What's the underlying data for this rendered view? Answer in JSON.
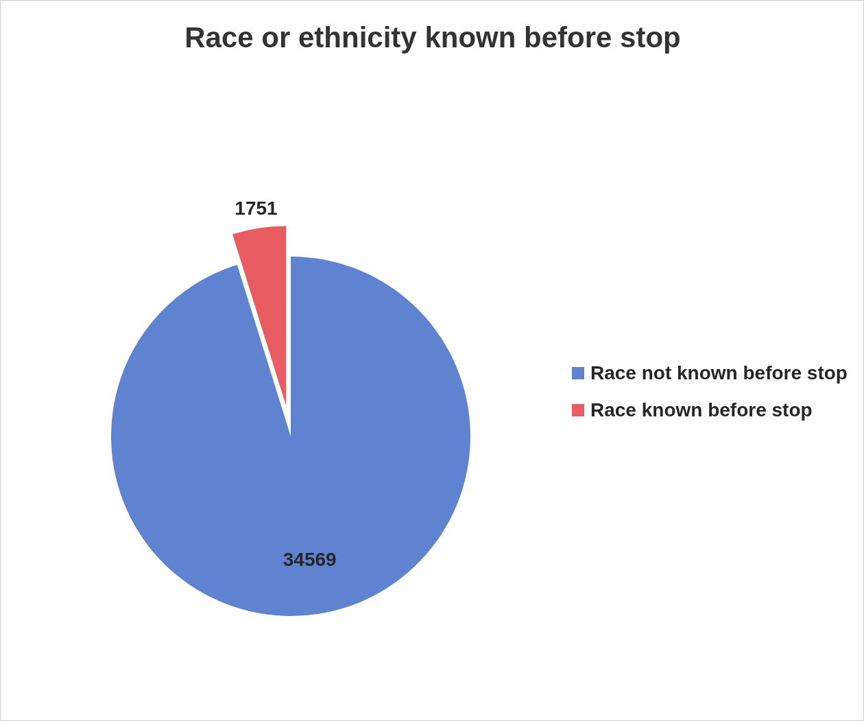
{
  "chart_data": {
    "type": "pie",
    "title": "Race or ethnicity known before stop",
    "categories": [
      "Race not known before stop",
      "Race known before stop"
    ],
    "values": [
      34569,
      1751
    ],
    "colors": [
      "#5f83d0",
      "#e95c62"
    ],
    "data_labels": true,
    "legend": "right"
  }
}
